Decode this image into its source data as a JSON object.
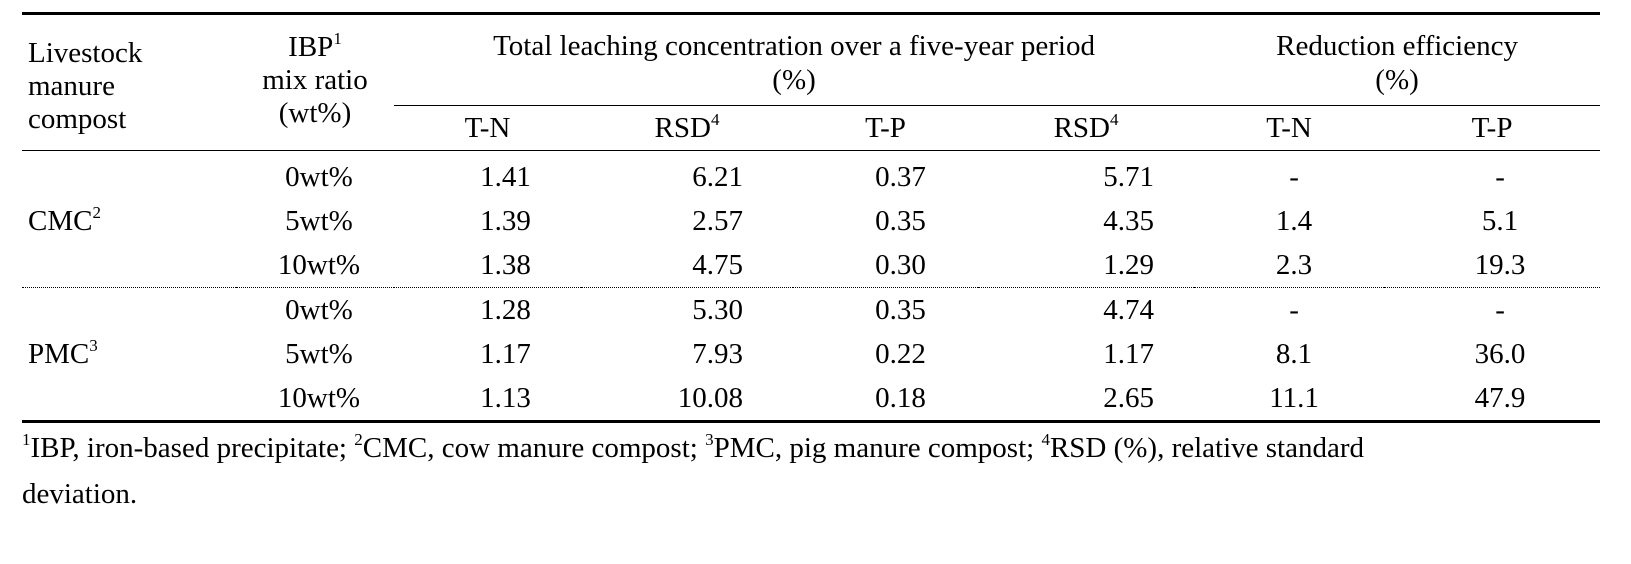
{
  "table": {
    "header": {
      "col1_lines": [
        "Livestock",
        "manure",
        "compost"
      ],
      "col2_line1": "IBP",
      "col2_line1_sup": "1",
      "col2_line2": "mix ratio",
      "col2_line3": "(wt%)",
      "group1_line1": "Total leaching concentration over a five-year period",
      "group1_line2": "(%)",
      "group2_line1": "Reduction efficiency",
      "group2_line2": "(%)",
      "sub": {
        "tn": "T-N",
        "rsd_a": "RSD",
        "rsd_a_sup": "4",
        "tp": "T-P",
        "rsd_b": "RSD",
        "rsd_b_sup": "4",
        "red_tn": "T-N",
        "red_tp": "T-P"
      }
    },
    "groups": [
      {
        "name": "CMC",
        "sup": "2",
        "rows": [
          {
            "ratio": "0wt%",
            "tn": "1.41",
            "rsd_tn": "6.21",
            "tp": "0.37",
            "rsd_tp": "5.71",
            "red_tn": "-",
            "red_tp": "-"
          },
          {
            "ratio": "5wt%",
            "tn": "1.39",
            "rsd_tn": "2.57",
            "tp": "0.35",
            "rsd_tp": "4.35",
            "red_tn": "1.4",
            "red_tp": "5.1"
          },
          {
            "ratio": "10wt%",
            "tn": "1.38",
            "rsd_tn": "4.75",
            "tp": "0.30",
            "rsd_tp": "1.29",
            "red_tn": "2.3",
            "red_tp": "19.3"
          }
        ]
      },
      {
        "name": "PMC",
        "sup": "3",
        "rows": [
          {
            "ratio": "0wt%",
            "tn": "1.28",
            "rsd_tn": "5.30",
            "tp": "0.35",
            "rsd_tp": "4.74",
            "red_tn": "-",
            "red_tp": "-"
          },
          {
            "ratio": "5wt%",
            "tn": "1.17",
            "rsd_tn": "7.93",
            "tp": "0.22",
            "rsd_tp": "1.17",
            "red_tn": "8.1",
            "red_tp": "36.0"
          },
          {
            "ratio": "10wt%",
            "tn": "1.13",
            "rsd_tn": "10.08",
            "tp": "0.18",
            "rsd_tp": "2.65",
            "red_tn": "11.1",
            "red_tp": "47.9"
          }
        ]
      }
    ]
  },
  "footnote": {
    "s1": "1",
    "t1": "IBP, iron-based precipitate; ",
    "s2": "2",
    "t2": "CMC, cow manure compost; ",
    "s3": "3",
    "t3": "PMC, pig manure compost; ",
    "s4": "4",
    "t4": "RSD (%), relative standard",
    "t5": "deviation."
  }
}
